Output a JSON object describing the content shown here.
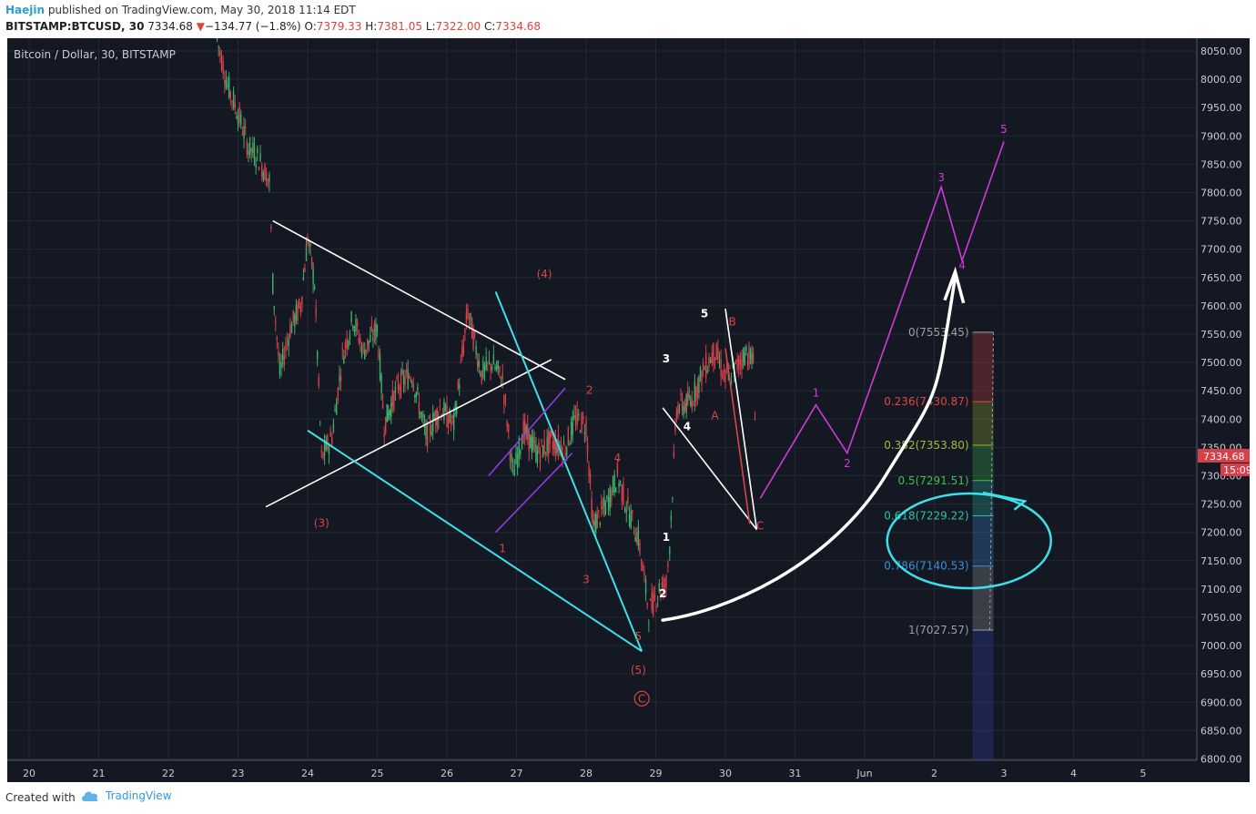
{
  "header": {
    "author": "Haejin",
    "published": "published on TradingView.com, May 30, 2018 11:14 EDT",
    "symbol": "BITSTAMP:BTCUSD, 30",
    "last": "7334.68",
    "change_arrow": "▼",
    "change": "−134.77 (−1.8%)",
    "o_label": "O:",
    "o": "7379.33",
    "h_label": "H:",
    "h": "7381.05",
    "l_label": "L:",
    "l": "7322.00",
    "c_label": "C:",
    "c": "7334.68"
  },
  "footer": {
    "created_with": "Created with",
    "brand": "TradingView"
  },
  "colors": {
    "background": "#141823",
    "up": "#3fae6a",
    "down": "#d6404a",
    "cyan": "#3ee0e8",
    "white": "#ffffff",
    "magenta": "#d23ad9",
    "purple": "#8a3ee0",
    "red": "#d84545"
  },
  "chart_data": {
    "type": "line",
    "title": "Bitcoin / Dollar, 30, BITSTAMP",
    "x_ticks": [
      "20",
      "21",
      "22",
      "23",
      "24",
      "25",
      "26",
      "27",
      "28",
      "29",
      "30",
      "31",
      "Jun",
      "2",
      "3",
      "4",
      "5"
    ],
    "y_ticks": [
      "8050.00",
      "8000.00",
      "7950.00",
      "7900.00",
      "7850.00",
      "7800.00",
      "7750.00",
      "7700.00",
      "7650.00",
      "7600.00",
      "7550.00",
      "7500.00",
      "7450.00",
      "7400.00",
      "7350.00",
      "7300.00",
      "7250.00",
      "7200.00",
      "7150.00",
      "7100.00",
      "7050.00",
      "7000.00",
      "6950.00",
      "6900.00",
      "6850.00",
      "6800.00"
    ],
    "ylim": [
      6800,
      8075
    ],
    "last_price_label": "7334.68",
    "timer_label": "15:09",
    "price_path": {
      "x": [
        22.7,
        22.85,
        23.0,
        23.15,
        23.3,
        23.45,
        23.5,
        23.6,
        23.75,
        23.9,
        24.0,
        24.1,
        24.2,
        24.35,
        24.5,
        24.65,
        24.8,
        25.0,
        25.1,
        25.3,
        25.5,
        25.7,
        25.9,
        26.1,
        26.3,
        26.5,
        26.65,
        26.8,
        26.95,
        27.1,
        27.3,
        27.5,
        27.7,
        27.85,
        28.0,
        28.1,
        28.3,
        28.45,
        28.6,
        28.75,
        28.9,
        29.05,
        29.15,
        29.2,
        29.3,
        29.5,
        29.7,
        29.85,
        30.0,
        30.15,
        30.3,
        30.4,
        30.45
      ],
      "y": [
        8070,
        7990,
        7940,
        7880,
        7860,
        7820,
        7640,
        7480,
        7560,
        7600,
        7720,
        7640,
        7330,
        7370,
        7510,
        7580,
        7520,
        7560,
        7390,
        7460,
        7480,
        7370,
        7420,
        7390,
        7590,
        7480,
        7500,
        7470,
        7300,
        7380,
        7340,
        7360,
        7350,
        7400,
        7390,
        7210,
        7250,
        7300,
        7240,
        7190,
        7060,
        7100,
        7110,
        7180,
        7420,
        7430,
        7490,
        7520,
        7470,
        7490,
        7520,
        7500,
        7335
      ]
    },
    "fib_levels": [
      {
        "label": "0(7553.45)",
        "value": 7553.45,
        "color": "#9aa0a6"
      },
      {
        "label": "0.236(7430.87)",
        "value": 7430.87,
        "color": "#e04545"
      },
      {
        "label": "0.382(7353.80)",
        "value": 7353.8,
        "color": "#9dbb35"
      },
      {
        "label": "0.5(7291.51)",
        "value": 7291.51,
        "color": "#3fbf4f"
      },
      {
        "label": "0.618(7229.22)",
        "value": 7229.22,
        "color": "#2ec0a8"
      },
      {
        "label": "0.786(7140.53)",
        "value": 7140.53,
        "color": "#3e8fdc"
      },
      {
        "label": "1(7027.57)",
        "value": 7027.57,
        "color": "#9aa0a6"
      }
    ],
    "wave_labels": [
      {
        "text": "(4)",
        "x": 27.4,
        "y": 7650,
        "color": "#d84545"
      },
      {
        "text": "(3)",
        "x": 24.2,
        "y": 7210,
        "color": "#d84545"
      },
      {
        "text": "1",
        "x": 26.8,
        "y": 7165,
        "color": "#d84545"
      },
      {
        "text": "2",
        "x": 28.05,
        "y": 7445,
        "color": "#d84545"
      },
      {
        "text": "3",
        "x": 28.0,
        "y": 7110,
        "color": "#d84545"
      },
      {
        "text": "4",
        "x": 28.45,
        "y": 7325,
        "color": "#d84545"
      },
      {
        "text": "5",
        "x": 28.75,
        "y": 7010,
        "color": "#d84545"
      },
      {
        "text": "(5)",
        "x": 28.75,
        "y": 6950,
        "color": "#d84545"
      },
      {
        "text": "C",
        "x": 28.8,
        "y": 6900,
        "color": "#d84545",
        "circled": true
      },
      {
        "text": "1",
        "x": 29.15,
        "y": 7185,
        "color": "#ffffff"
      },
      {
        "text": "2",
        "x": 29.1,
        "y": 7085,
        "color": "#ffffff"
      },
      {
        "text": "3",
        "x": 29.15,
        "y": 7500,
        "color": "#ffffff"
      },
      {
        "text": "4",
        "x": 29.45,
        "y": 7380,
        "color": "#ffffff"
      },
      {
        "text": "5",
        "x": 29.7,
        "y": 7580,
        "color": "#ffffff"
      },
      {
        "text": "A",
        "x": 29.85,
        "y": 7400,
        "color": "#d84545"
      },
      {
        "text": "B",
        "x": 30.1,
        "y": 7565,
        "color": "#d84545"
      },
      {
        "text": "C",
        "x": 30.5,
        "y": 7205,
        "color": "#d84545"
      },
      {
        "text": "1",
        "x": 31.3,
        "y": 7440,
        "color": "#d23ad9"
      },
      {
        "text": "2",
        "x": 31.75,
        "y": 7315,
        "color": "#d23ad9"
      },
      {
        "text": "3",
        "x": 33.1,
        "y": 7820,
        "color": "#d23ad9"
      },
      {
        "text": "4",
        "x": 33.4,
        "y": 7665,
        "color": "#d23ad9"
      },
      {
        "text": "5",
        "x": 34.0,
        "y": 7905,
        "color": "#d23ad9"
      }
    ],
    "trendlines": [
      {
        "color": "#ffffff",
        "points": [
          [
            23.5,
            7750
          ],
          [
            27.7,
            7470
          ]
        ]
      },
      {
        "color": "#ffffff",
        "points": [
          [
            23.4,
            7245
          ],
          [
            27.5,
            7505
          ]
        ]
      },
      {
        "color": "#3ee0e8",
        "points": [
          [
            24.0,
            7380
          ],
          [
            28.8,
            6990
          ]
        ]
      },
      {
        "color": "#3ee0e8",
        "points": [
          [
            26.7,
            7625
          ],
          [
            28.8,
            6990
          ]
        ]
      },
      {
        "color": "#8a3ee0",
        "points": [
          [
            26.6,
            7300
          ],
          [
            27.7,
            7455
          ]
        ]
      },
      {
        "color": "#8a3ee0",
        "points": [
          [
            26.7,
            7200
          ],
          [
            27.8,
            7340
          ]
        ]
      },
      {
        "color": "#ffffff",
        "points": [
          [
            29.1,
            7420
          ],
          [
            30.45,
            7205
          ]
        ]
      },
      {
        "color": "#ffffff",
        "points": [
          [
            30.0,
            7595
          ],
          [
            30.45,
            7205
          ]
        ]
      },
      {
        "color": "#d84545",
        "points": [
          [
            30.0,
            7525
          ],
          [
            30.35,
            7215
          ]
        ]
      },
      {
        "color": "#d23ad9",
        "points": [
          [
            30.5,
            7260
          ],
          [
            31.3,
            7425
          ],
          [
            31.75,
            7340
          ],
          [
            33.1,
            7810
          ],
          [
            33.4,
            7680
          ],
          [
            34.0,
            7890
          ]
        ]
      }
    ]
  }
}
